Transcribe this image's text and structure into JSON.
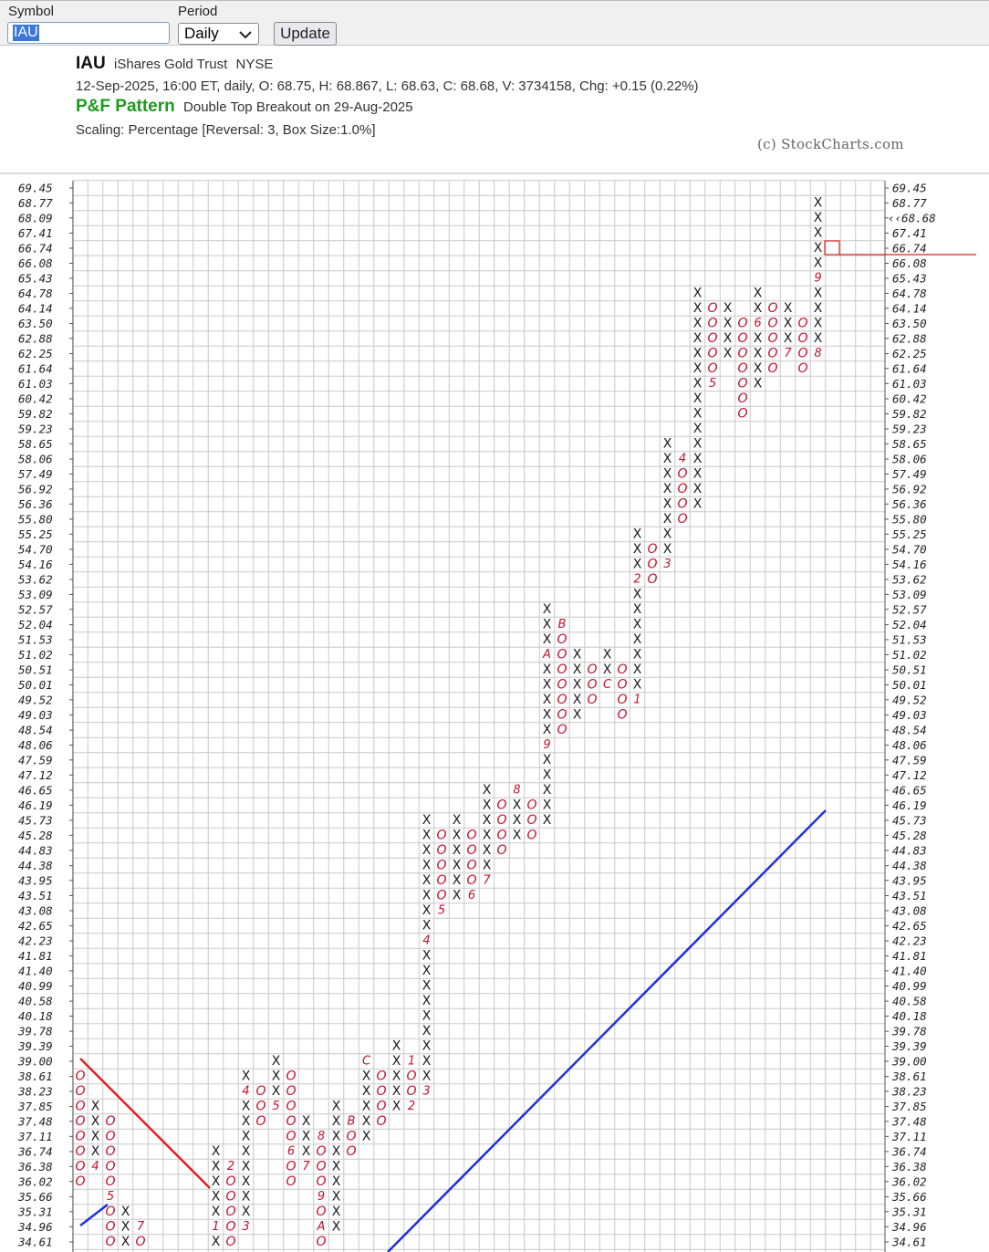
{
  "form": {
    "symbol_label": "Symbol",
    "symbol_value": "IAU",
    "period_label": "Period",
    "period_value": "Daily",
    "button": "Update"
  },
  "chart_data": {
    "type": "point_and_figure",
    "title": "IAU",
    "name": "iShares Gold Trust",
    "exchange": "NYSE",
    "quote": "12-Sep-2025, 16:00 ET, daily, O: 68.75, H: 68.867, L: 68.63, C: 68.68, V: 3734158, Chg: +0.15 (0.22%)",
    "pattern_label": "P&F Pattern",
    "pattern": "Double Top Breakout on 29-Aug-2025",
    "scaling": "Scaling: Percentage [Reversal: 3, Box Size:1.0%]",
    "copyright": "(c) StockCharts.com",
    "log_scale": true,
    "ylim": [
      34.61,
      69.45
    ],
    "yticks": [
      69.45,
      68.77,
      68.09,
      67.41,
      66.74,
      66.08,
      65.43,
      64.78,
      64.14,
      {
        "value": 63.5,
        "label": "63.50"
      },
      62.88,
      62.25,
      61.64,
      61.03,
      60.42,
      59.82,
      59.23,
      58.65,
      58.06,
      57.49,
      56.92,
      56.36,
      {
        "value": 55.8,
        "label": "55.80"
      },
      55.25,
      {
        "value": 54.7,
        "label": "54.70"
      },
      54.16,
      53.62,
      53.09,
      52.57,
      52.04,
      51.53,
      51.02,
      50.51,
      50.01,
      49.52,
      49.03,
      48.54,
      48.06,
      47.59,
      47.12,
      46.65,
      46.19,
      45.73,
      45.28,
      44.83,
      44.38,
      43.95,
      43.51,
      43.08,
      42.65,
      42.23,
      41.81,
      {
        "value": 41.4,
        "label": "41.40"
      },
      40.99,
      40.58,
      40.18,
      39.78,
      39.39,
      {
        "value": 39,
        "label": "39.00"
      },
      38.61,
      38.23,
      37.85,
      37.48,
      37.11,
      36.74,
      36.38,
      36.02,
      35.66,
      35.31,
      34.96,
      34.61
    ],
    "last_price": {
      "value": 68.68,
      "label": "‹‹68.68"
    },
    "colors": {
      "x": "#1a1a1a",
      "o": "#c8102e",
      "month": "#c8102e",
      "last_price": "#c8102e"
    },
    "columns": [
      {
        "symbol": "O",
        "low": 36.02,
        "high": 38.61,
        "months": []
      },
      {
        "symbol": "X",
        "low": 36.38,
        "high": 37.85,
        "months": [
          {
            "price": 36.38,
            "label": "4"
          }
        ]
      },
      {
        "symbol": "O",
        "low": 34.61,
        "high": 37.48,
        "months": [
          {
            "price": 35.66,
            "label": "5"
          }
        ]
      },
      {
        "symbol": "X",
        "low": 34.61,
        "high": 35.31,
        "months": []
      },
      {
        "symbol": "O",
        "low": 34.61,
        "high": 34.96,
        "months": [
          {
            "price": 34.96,
            "label": "7"
          }
        ]
      },
      null,
      null,
      null,
      null,
      {
        "symbol": "X",
        "low": 34.61,
        "high": 36.74,
        "months": [
          {
            "price": 34.96,
            "label": "1"
          }
        ]
      },
      {
        "symbol": "O",
        "low": 34.61,
        "high": 36.38,
        "months": [
          {
            "price": 36.38,
            "label": "2"
          }
        ]
      },
      {
        "symbol": "X",
        "low": 34.96,
        "high": 38.61,
        "months": [
          {
            "price": 34.96,
            "label": "3"
          },
          {
            "price": 38.23,
            "label": "4"
          }
        ]
      },
      {
        "symbol": "O",
        "low": 37.48,
        "high": 38.23,
        "months": []
      },
      {
        "symbol": "X",
        "low": 37.85,
        "high": 39,
        "months": [
          {
            "price": 37.85,
            "label": "5"
          }
        ]
      },
      {
        "symbol": "O",
        "low": 36.02,
        "high": 38.61,
        "months": [
          {
            "price": 36.74,
            "label": "6"
          }
        ]
      },
      {
        "symbol": "X",
        "low": 36.38,
        "high": 37.48,
        "months": [
          {
            "price": 36.38,
            "label": "7"
          }
        ]
      },
      {
        "symbol": "O",
        "low": 34.61,
        "high": 37.11,
        "months": [
          {
            "price": 37.11,
            "label": "8"
          },
          {
            "price": 35.66,
            "label": "9"
          },
          {
            "price": 34.96,
            "label": "A"
          }
        ]
      },
      {
        "symbol": "X",
        "low": 34.96,
        "high": 37.85,
        "months": []
      },
      {
        "symbol": "O",
        "low": 36.74,
        "high": 37.48,
        "months": [
          {
            "price": 37.48,
            "label": "B"
          }
        ]
      },
      {
        "symbol": "X",
        "low": 37.11,
        "high": 39,
        "months": [
          {
            "price": 39,
            "label": "C"
          }
        ]
      },
      {
        "symbol": "O",
        "low": 37.48,
        "high": 38.61,
        "months": []
      },
      {
        "symbol": "X",
        "low": 37.85,
        "high": 39.39,
        "months": []
      },
      {
        "symbol": "O",
        "low": 37.85,
        "high": 39,
        "months": [
          {
            "price": 39,
            "label": "1"
          },
          {
            "price": 37.85,
            "label": "2"
          }
        ]
      },
      {
        "symbol": "X",
        "low": 38.23,
        "high": 45.73,
        "months": [
          {
            "price": 38.23,
            "label": "3"
          },
          {
            "price": 42.23,
            "label": "4"
          }
        ]
      },
      {
        "symbol": "O",
        "low": 43.08,
        "high": 45.28,
        "months": [
          {
            "price": 43.08,
            "label": "5"
          }
        ]
      },
      {
        "symbol": "X",
        "low": 43.51,
        "high": 45.73,
        "months": []
      },
      {
        "symbol": "O",
        "low": 43.51,
        "high": 45.28,
        "months": [
          {
            "price": 43.51,
            "label": "6"
          }
        ]
      },
      {
        "symbol": "X",
        "low": 43.95,
        "high": 46.65,
        "months": [
          {
            "price": 43.95,
            "label": "7"
          }
        ]
      },
      {
        "symbol": "O",
        "low": 44.83,
        "high": 46.19,
        "months": []
      },
      {
        "symbol": "X",
        "low": 45.28,
        "high": 46.65,
        "months": [
          {
            "price": 46.65,
            "label": "8"
          }
        ]
      },
      {
        "symbol": "O",
        "low": 45.28,
        "high": 46.19,
        "months": []
      },
      {
        "symbol": "X",
        "low": 45.73,
        "high": 52.57,
        "months": [
          {
            "price": 48.06,
            "label": "9"
          },
          {
            "price": 51.02,
            "label": "A"
          }
        ]
      },
      {
        "symbol": "O",
        "low": 48.54,
        "high": 52.04,
        "months": [
          {
            "price": 52.04,
            "label": "B"
          }
        ]
      },
      {
        "symbol": "X",
        "low": 49.03,
        "high": 51.02,
        "months": []
      },
      {
        "symbol": "O",
        "low": 49.52,
        "high": 50.51,
        "months": []
      },
      {
        "symbol": "X",
        "low": 50.01,
        "high": 51.02,
        "months": [
          {
            "price": 50.01,
            "label": "C"
          }
        ]
      },
      {
        "symbol": "O",
        "low": 49.03,
        "high": 50.51,
        "months": []
      },
      {
        "symbol": "X",
        "low": 49.52,
        "high": 55.25,
        "months": [
          {
            "price": 49.52,
            "label": "1"
          },
          {
            "price": 53.62,
            "label": "2"
          }
        ]
      },
      {
        "symbol": "O",
        "low": 53.62,
        "high": 54.7,
        "months": []
      },
      {
        "symbol": "X",
        "low": 54.16,
        "high": 58.65,
        "months": [
          {
            "price": 54.16,
            "label": "3"
          }
        ]
      },
      {
        "symbol": "O",
        "low": 55.8,
        "high": 58.06,
        "months": [
          {
            "price": 58.06,
            "label": "4"
          }
        ]
      },
      {
        "symbol": "X",
        "low": 56.36,
        "high": 64.78,
        "months": []
      },
      {
        "symbol": "O",
        "low": 61.03,
        "high": 64.14,
        "months": [
          {
            "price": 61.03,
            "label": "5"
          }
        ]
      },
      {
        "symbol": "X",
        "low": 62.25,
        "high": 64.14,
        "months": []
      },
      {
        "symbol": "O",
        "low": 59.82,
        "high": 63.5,
        "months": []
      },
      {
        "symbol": "X",
        "low": 61.03,
        "high": 64.78,
        "months": [
          {
            "price": 63.5,
            "label": "6"
          }
        ]
      },
      {
        "symbol": "O",
        "low": 61.64,
        "high": 64.14,
        "months": []
      },
      {
        "symbol": "X",
        "low": 62.25,
        "high": 64.14,
        "months": [
          {
            "price": 62.25,
            "label": "7"
          }
        ]
      },
      {
        "symbol": "O",
        "low": 61.64,
        "high": 63.5,
        "months": []
      },
      {
        "symbol": "X",
        "low": 62.25,
        "high": 68.77,
        "months": [
          {
            "price": 62.25,
            "label": "8"
          },
          {
            "price": 65.43,
            "label": "9"
          }
        ]
      }
    ]
  }
}
